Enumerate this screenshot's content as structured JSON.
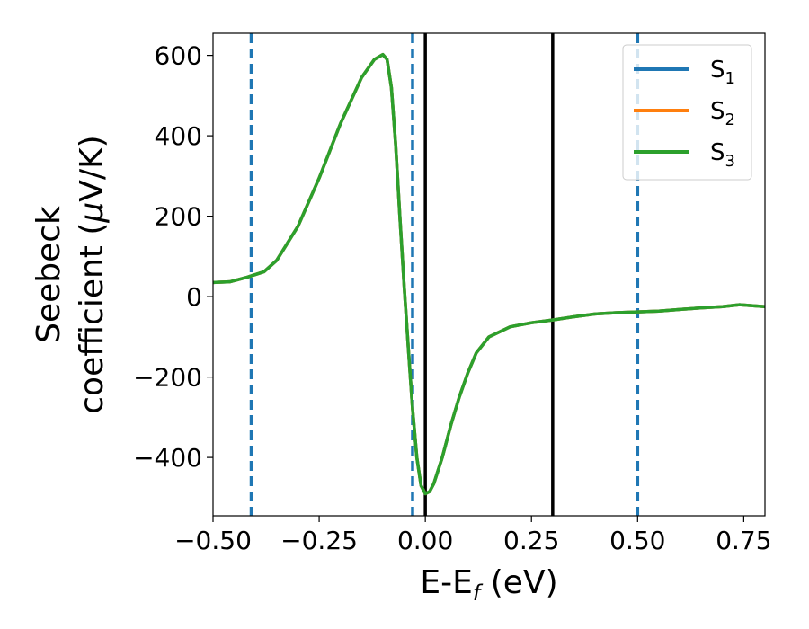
{
  "chart_data": {
    "type": "line",
    "xlabel": "E-E",
    "xlabel_sub": "f",
    "xlabel_suffix": " (eV)",
    "ylabel_line1": "Seebeck",
    "ylabel_line2_prefix": "coefficient  (",
    "ylabel_mu": "μ",
    "ylabel_line2_suffix": "V/K)",
    "xlim": [
      -0.5,
      0.8
    ],
    "ylim": [
      -545,
      655
    ],
    "xticks": [
      -0.5,
      -0.25,
      0.0,
      0.25,
      0.5,
      0.75
    ],
    "xtick_labels": [
      "−0.50",
      "−0.25",
      "0.00",
      "0.25",
      "0.50",
      "0.75"
    ],
    "yticks": [
      -400,
      -200,
      0,
      200,
      400,
      600
    ],
    "ytick_labels": [
      "−400",
      "−200",
      "0",
      "200",
      "400",
      "600"
    ],
    "grid": false,
    "legend_position": "top-right",
    "vlines_dashed": [
      -0.41,
      -0.03,
      0.5
    ],
    "vlines_solid": [
      0.0,
      0.3
    ],
    "x": [
      -0.5,
      -0.46,
      -0.42,
      -0.38,
      -0.35,
      -0.3,
      -0.25,
      -0.2,
      -0.15,
      -0.12,
      -0.1,
      -0.09,
      -0.08,
      -0.07,
      -0.06,
      -0.05,
      -0.04,
      -0.03,
      -0.02,
      -0.01,
      0.0,
      0.01,
      0.02,
      0.04,
      0.06,
      0.08,
      0.1,
      0.12,
      0.15,
      0.2,
      0.25,
      0.3,
      0.35,
      0.4,
      0.45,
      0.5,
      0.55,
      0.6,
      0.65,
      0.7,
      0.74,
      0.8
    ],
    "series": [
      {
        "name_base": "S",
        "name_sub": "1",
        "color": "#1f77b4",
        "values": [
          35,
          37,
          48,
          62,
          90,
          175,
          295,
          430,
          545,
          590,
          602,
          590,
          520,
          380,
          200,
          30,
          -130,
          -280,
          -400,
          -470,
          -490,
          -485,
          -465,
          -400,
          -320,
          -250,
          -190,
          -140,
          -100,
          -75,
          -65,
          -58,
          -50,
          -43,
          -40,
          -38,
          -36,
          -32,
          -28,
          -25,
          -20,
          -25
        ]
      },
      {
        "name_base": "S",
        "name_sub": "2",
        "color": "#ff7f0e",
        "values": [
          35,
          37,
          48,
          62,
          90,
          175,
          295,
          430,
          545,
          590,
          602,
          590,
          520,
          380,
          200,
          30,
          -130,
          -280,
          -400,
          -470,
          -490,
          -485,
          -465,
          -400,
          -320,
          -250,
          -190,
          -140,
          -100,
          -75,
          -65,
          -58,
          -50,
          -43,
          -40,
          -38,
          -36,
          -32,
          -28,
          -25,
          -20,
          -25
        ]
      },
      {
        "name_base": "S",
        "name_sub": "3",
        "color": "#2ca02c",
        "values": [
          35,
          37,
          48,
          62,
          90,
          175,
          295,
          430,
          545,
          590,
          602,
          590,
          520,
          380,
          200,
          30,
          -130,
          -280,
          -400,
          -470,
          -490,
          -485,
          -465,
          -400,
          -320,
          -250,
          -190,
          -140,
          -100,
          -75,
          -65,
          -58,
          -50,
          -43,
          -40,
          -38,
          -36,
          -32,
          -28,
          -25,
          -20,
          -25
        ]
      }
    ]
  }
}
